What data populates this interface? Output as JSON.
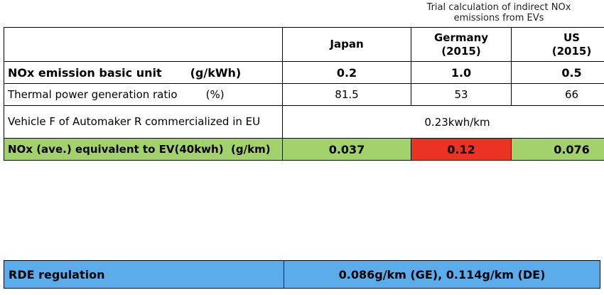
{
  "caption": [
    "Trial calculation of indirect NOx",
    "emissions from EVs"
  ],
  "header": {
    "japan": [
      "Japan"
    ],
    "germany": [
      "Germany",
      "(2015)"
    ],
    "us": [
      "US",
      "(2015)"
    ]
  },
  "rows": {
    "basic_unit": {
      "label": "NOx emission basic unit",
      "unit": "(g/kWh)",
      "values": [
        "0.2",
        "1.0",
        "0.5"
      ]
    },
    "thermal": {
      "label": "Thermal power generation ratio",
      "unit": "(%)",
      "values": [
        "81.5",
        "53",
        "66"
      ]
    },
    "vehicle": {
      "label": "Vehicle F of Automaker R commercialized in EU",
      "value": "0.23kwh/km"
    },
    "nox_ev": {
      "label": "NOx (ave.) equivalent to EV(40kwh)",
      "unit": "(g/km)",
      "values": [
        "0.037",
        "0.12",
        "0.076"
      ]
    }
  },
  "rde": {
    "label": "RDE regulation",
    "value": "0.086g/km (GE),  0.114g/km (DE)"
  },
  "colors": {
    "good": "#a3d16c",
    "bad": "#ea3323",
    "rde": "#5aacea"
  }
}
